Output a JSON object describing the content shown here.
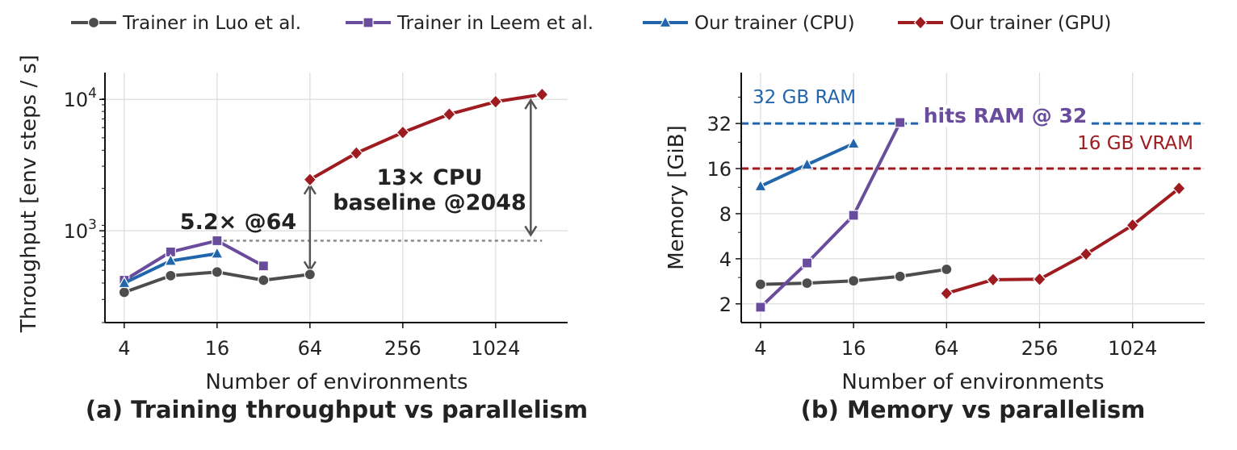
{
  "legend": [
    {
      "label": "Trainer in Luo et al.",
      "color": "#4d4d4d",
      "marker": "circle"
    },
    {
      "label": "Trainer in Leem et al.",
      "color": "#6a4c9c",
      "marker": "square"
    },
    {
      "label": "Our trainer (CPU)",
      "color": "#2166ac",
      "marker": "triangle"
    },
    {
      "label": "Our trainer (GPU)",
      "color": "#9e1b20",
      "marker": "diamond"
    }
  ],
  "chart_data": [
    {
      "type": "line",
      "title": "(a) Training throughput vs parallelism",
      "xlabel": "Number of environments",
      "ylabel": "Throughput  [env steps / s]",
      "xscale": "log2",
      "yscale": "log10",
      "xlim": [
        3,
        3000
      ],
      "ylim": [
        200,
        16000
      ],
      "xticks": [
        4,
        16,
        64,
        256,
        1024
      ],
      "xtick_labels": [
        "4",
        "16",
        "64",
        "256",
        "1024"
      ],
      "yticks": [
        1000,
        10000
      ],
      "ytick_labels": [
        {
          "base": "10",
          "exp": "3"
        },
        {
          "base": "10",
          "exp": "4"
        }
      ],
      "grid": true,
      "series": [
        {
          "name": "Trainer in Luo et al.",
          "x": [
            4,
            8,
            16,
            32,
            64
          ],
          "y": [
            340,
            455,
            485,
            420,
            465
          ]
        },
        {
          "name": "Trainer in Leem et al.",
          "x": [
            4,
            8,
            16,
            32
          ],
          "y": [
            420,
            690,
            840,
            540
          ]
        },
        {
          "name": "Our trainer (CPU)",
          "x": [
            4,
            8,
            16
          ],
          "y": [
            400,
            590,
            670
          ]
        },
        {
          "name": "Our trainer (GPU)",
          "x": [
            64,
            128,
            256,
            512,
            1024,
            2048
          ],
          "y": [
            2450,
            3900,
            5600,
            7700,
            9600,
            10900
          ]
        }
      ],
      "annotations": [
        {
          "text": "5.2× @64"
        },
        {
          "text_lines": [
            "13× CPU",
            "baseline @2048"
          ]
        }
      ]
    },
    {
      "type": "line",
      "title": "(b) Memory vs parallelism",
      "xlabel": "Number of environments",
      "ylabel": "Memory  [GiB]",
      "xscale": "log2",
      "yscale": "log2",
      "xlim": [
        3,
        3000
      ],
      "ylim": [
        1.5,
        70
      ],
      "xticks": [
        4,
        16,
        64,
        256,
        1024
      ],
      "xtick_labels": [
        "4",
        "16",
        "64",
        "256",
        "1024"
      ],
      "yticks": [
        2,
        4,
        8,
        16,
        32
      ],
      "ytick_labels": [
        "2",
        "4",
        "8",
        "16",
        "32"
      ],
      "grid": true,
      "series": [
        {
          "name": "Trainer in Luo et al.",
          "x": [
            4,
            8,
            16,
            32,
            64
          ],
          "y": [
            2.7,
            2.75,
            2.85,
            3.05,
            3.4
          ]
        },
        {
          "name": "Trainer in Leem et al.",
          "x": [
            4,
            8,
            16,
            32
          ],
          "y": [
            1.9,
            3.75,
            7.8,
            32.5
          ]
        },
        {
          "name": "Our trainer (CPU)",
          "x": [
            4,
            8,
            16
          ],
          "y": [
            12.2,
            17,
            23.5
          ]
        },
        {
          "name": "Our trainer (GPU)",
          "x": [
            64,
            128,
            256,
            512,
            1024,
            2048
          ],
          "y": [
            2.35,
            2.9,
            2.92,
            4.3,
            6.7,
            11.8
          ]
        }
      ],
      "reference_lines": [
        {
          "y": 32,
          "label": "32 GB RAM",
          "color": "#2166ac"
        },
        {
          "y": 16,
          "label": "16 GB VRAM",
          "color": "#9e1b20"
        }
      ],
      "annotations": [
        {
          "text": "hits RAM @ 32",
          "color": "#6a4c9c"
        }
      ]
    }
  ]
}
